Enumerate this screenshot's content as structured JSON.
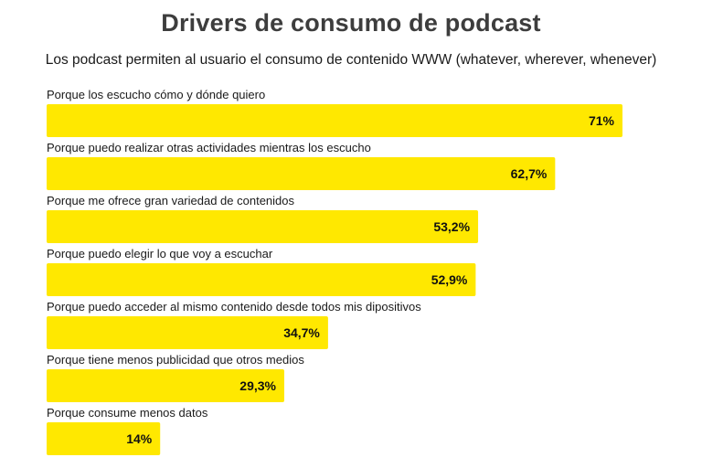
{
  "chart_data": {
    "type": "bar",
    "orientation": "horizontal",
    "title": "Drivers de consumo de podcast",
    "subtitle": "Los podcast permiten al usuario el consumo de contenido WWW (whatever, wherever, whenever)",
    "categories": [
      "Porque los escucho cómo y dónde quiero",
      "Porque puedo realizar otras actividades mientras los escucho",
      "Porque me ofrece gran variedad de contenidos",
      "Porque puedo elegir lo que voy a escuchar",
      "Porque puedo acceder al mismo contenido desde todos mis dipositivos",
      "Porque tiene menos publicidad que otros medios",
      "Porque consume menos datos"
    ],
    "values": [
      71,
      62.7,
      53.2,
      52.9,
      34.7,
      29.3,
      14
    ],
    "value_labels": [
      "71%",
      "62,7%",
      "53,2%",
      "52,9%",
      "34,7%",
      "29,3%",
      "14%"
    ],
    "xlim": [
      0,
      71
    ],
    "unit": "%",
    "bar_color": "#FFE800"
  }
}
